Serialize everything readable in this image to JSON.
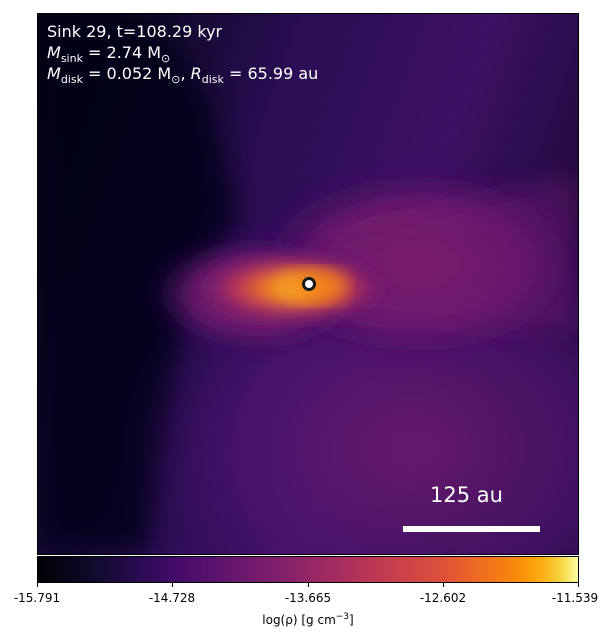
{
  "annotation": {
    "title": "Sink 29, t=108.29 kyr",
    "sink_symbol": "M",
    "sink_sub": "sink",
    "sink_value": " = 2.74 M",
    "sink_unit_sub": "⊙",
    "disk_symbol": "M",
    "disk_sub": "disk",
    "disk_value": " = 0.052 M",
    "disk_unit_sub": "⊙",
    "disk_sep": ", ",
    "rdisk_symbol": "R",
    "rdisk_sub": "disk",
    "rdisk_value": " = 65.99 au"
  },
  "scale_bar": {
    "label": "125 au"
  },
  "colorbar": {
    "ticks": [
      "-15.791",
      "-14.728",
      "-13.665",
      "-12.602",
      "-11.539"
    ],
    "label_prefix": "log(ρ) [g cm",
    "label_exp": "−3",
    "label_suffix": "]"
  },
  "colors": {
    "background_dark": "#000004",
    "envelope": "#5b1a70",
    "core": "#fb9b06",
    "sink_marker": "#ffffff"
  }
}
